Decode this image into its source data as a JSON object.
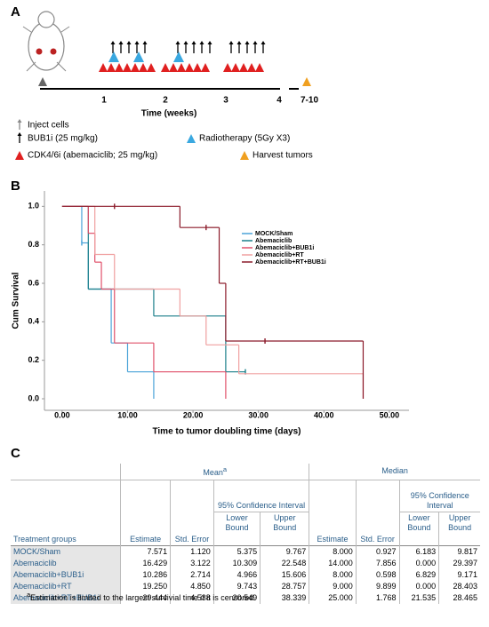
{
  "panel_a": {
    "label": "A",
    "ticks": [
      "1",
      "2",
      "3",
      "4",
      "7-10"
    ],
    "xlabel": "Time (weeks)",
    "legend": [
      "Inject cells",
      "BUB1i (25 mg/kg)",
      "Radiotherapy (5Gy X3)",
      "CDK4/6i (abemaciclib; 25 mg/kg)",
      "Harvest tumors"
    ]
  },
  "chart_data": {
    "type": "step",
    "panel_label": "B",
    "xlabel": "Time to tumor doubling time (days)",
    "ylabel": "Cum Survival",
    "xlim": [
      -2.7,
      53
    ],
    "ylim": [
      -0.06,
      1.08
    ],
    "xticks": [
      {
        "value": 0,
        "label": "0.00"
      },
      {
        "value": 10,
        "label": "10.00"
      },
      {
        "value": 20,
        "label": "20.00"
      },
      {
        "value": 30,
        "label": "30.00"
      },
      {
        "value": 40,
        "label": "40.00"
      },
      {
        "value": 50,
        "label": "50.00"
      }
    ],
    "yticks": [
      {
        "value": 0,
        "label": "0.0"
      },
      {
        "value": 0.2,
        "label": "0.2"
      },
      {
        "value": 0.4,
        "label": "0.4"
      },
      {
        "value": 0.6,
        "label": "0.6"
      },
      {
        "value": 0.8,
        "label": "0.8"
      },
      {
        "value": 1,
        "label": "1.0"
      }
    ],
    "legend": "upper center",
    "series": [
      {
        "name": "MOCK/Sham",
        "color": "#4aa3d8",
        "x": [
          0,
          3,
          4,
          7.5,
          10,
          14
        ],
        "values": [
          1,
          0.81,
          0.57,
          0.29,
          0.14,
          0
        ],
        "censored": [
          {
            "x": 3,
            "y": 0.81
          }
        ]
      },
      {
        "name": "Abemaciclib",
        "color": "#1b7f8a",
        "x": [
          0,
          4,
          14,
          25,
          28
        ],
        "values": [
          1,
          0.57,
          0.43,
          0.14,
          0.14
        ],
        "censored": [
          {
            "x": 28,
            "y": 0.14
          }
        ]
      },
      {
        "name": "Abemaciclib+BUB1i",
        "color": "#e0506a",
        "x": [
          0,
          4,
          5,
          6,
          8,
          14,
          25
        ],
        "values": [
          1,
          0.86,
          0.71,
          0.57,
          0.29,
          0.14,
          0
        ],
        "censored": []
      },
      {
        "name": "Abemaciclib+RT",
        "color": "#f0a0a0",
        "x": [
          0,
          5,
          8,
          18,
          22,
          27,
          46
        ],
        "values": [
          1,
          0.75,
          0.57,
          0.43,
          0.28,
          0.13,
          0
        ],
        "censored": []
      },
      {
        "name": "Abemaciclib+RT+BUB1i",
        "color": "#8b1a2a",
        "x": [
          0,
          18,
          22,
          24,
          25,
          46
        ],
        "values": [
          1,
          0.89,
          0.89,
          0.6,
          0.3,
          0
        ],
        "censored": [
          {
            "x": 8,
            "y": 1
          },
          {
            "x": 22,
            "y": 0.89
          },
          {
            "x": 31,
            "y": 0.3
          }
        ]
      }
    ]
  },
  "table": {
    "panel_label": "C",
    "group_headers": [
      {
        "text": "Mean",
        "note": "a"
      },
      {
        "text": "Median"
      }
    ],
    "ci_headers": [
      "95% Confidence Interval",
      "95% Confidence Interval"
    ],
    "columns": [
      "Treatment groups",
      "Estimate",
      "Std. Error",
      "Lower Bound",
      "Upper Bound",
      "Estimate",
      "Std. Error",
      "Lower Bound",
      "Upper Bound"
    ],
    "rows": [
      [
        "MOCK/Sham",
        "7.571",
        "1.120",
        "5.375",
        "9.767",
        "8.000",
        "0.927",
        "6.183",
        "9.817"
      ],
      [
        "Abemaciclib",
        "16.429",
        "3.122",
        "10.309",
        "22.548",
        "14.000",
        "7.856",
        "0.000",
        "29.397"
      ],
      [
        "Abemaciclib+BUB1i",
        "10.286",
        "2.714",
        "4.966",
        "15.606",
        "8.000",
        "0.598",
        "6.829",
        "9.171"
      ],
      [
        "Abemaciclib+RT",
        "19.250",
        "4.850",
        "9.743",
        "28.757",
        "9.000",
        "9.899",
        "0.000",
        "28.403"
      ],
      [
        "Abemaciclib+RT+BUB1i",
        "29.444",
        "4.538",
        "20.549",
        "38.339",
        "25.000",
        "1.768",
        "21.535",
        "28.465"
      ]
    ],
    "footnote": {
      "marker": "a",
      "text": "Estimation is limited to the largest survivial time if it is censored."
    }
  }
}
